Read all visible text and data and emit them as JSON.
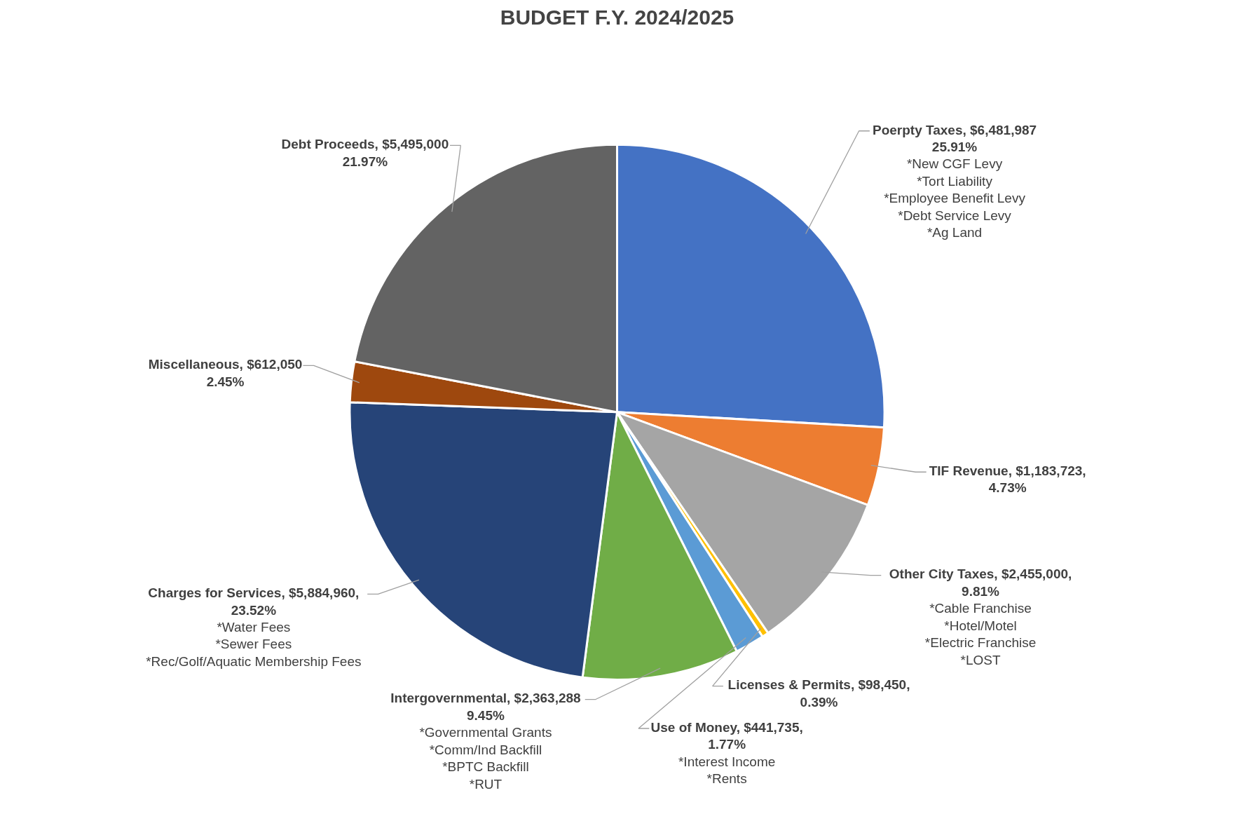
{
  "chart_data": {
    "type": "pie",
    "title": "BUDGET F.Y. 2024/2025",
    "categories": [
      "Poerpty Taxes",
      "TIF Revenue",
      "Other City Taxes",
      "Licenses & Permits",
      "Use of Money",
      "Intergovernmental",
      "Charges for Services",
      "Miscellaneous",
      "Debt Proceeds"
    ],
    "values": [
      6481987,
      1183723,
      2455000,
      98450,
      441735,
      2363288,
      5884960,
      612050,
      5495000
    ],
    "colors": [
      "#4472c4",
      "#ed7d31",
      "#a5a5a5",
      "#ffc000",
      "#5b9bd5",
      "#70ad47",
      "#264478",
      "#9e480e",
      "#636363"
    ],
    "value_labels": [
      "$6,481,987\n25.91%\n*New CGF Levy\n*Tort Liability\n*Employee Benefit Levy\n*Debt Service Levy\n*Ag Land",
      "$1,183,723,\n4.73%",
      "$2,455,000,\n9.81%\n*Cable Franchise\n*Hotel/Motel\n*Electric Franchise\n*LOST",
      "$98,450,\n0.39%",
      "$441,735,\n1.77%\n*Interest Income\n*Rents",
      "$2,363,288\n9.45%\n*Governmental Grants\n*Comm/Ind Backfill\n*BPTC Backfill\n*RUT",
      "$5,884,960,\n23.52%\n*Water Fees\n*Sewer Fees\n*Rec/Golf/Aquatic Membership Fees",
      "$612,050\n2.45%",
      "$5,495,000\n21.97%"
    ]
  }
}
